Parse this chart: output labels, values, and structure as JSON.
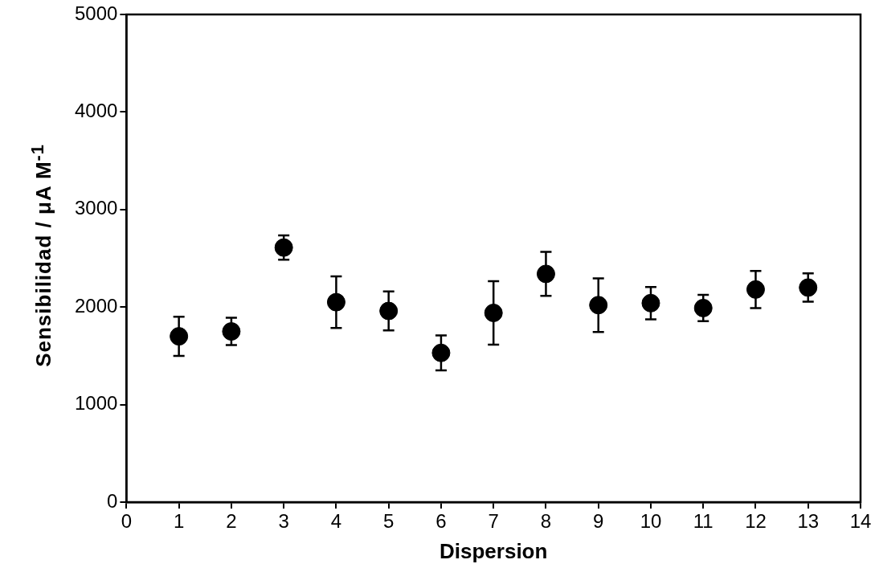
{
  "chart_data": {
    "type": "scatter",
    "xlabel": "Dispersion",
    "ylabel": "Sensibilidad / μA M$^{-1}$",
    "x": [
      1,
      2,
      3,
      4,
      5,
      6,
      7,
      8,
      9,
      10,
      11,
      12,
      13
    ],
    "series": [
      {
        "color": "#000000",
        "values": [
          1700,
          1750,
          2610,
          2050,
          1960,
          1530,
          1940,
          2340,
          2020,
          2040,
          1990,
          2180,
          2200
        ],
        "errors": [
          200,
          140,
          125,
          265,
          200,
          180,
          325,
          225,
          275,
          165,
          135,
          190,
          145
        ]
      }
    ],
    "xlim": [
      0,
      14
    ],
    "xticks": [
      0,
      1,
      2,
      3,
      4,
      5,
      6,
      7,
      8,
      9,
      10,
      11,
      12,
      13,
      14
    ],
    "ylim": [
      0,
      5000
    ],
    "yticks": [
      0,
      1000,
      2000,
      3000,
      4000,
      5000
    ],
    "marker": "circle",
    "grid": false,
    "legend": false
  }
}
